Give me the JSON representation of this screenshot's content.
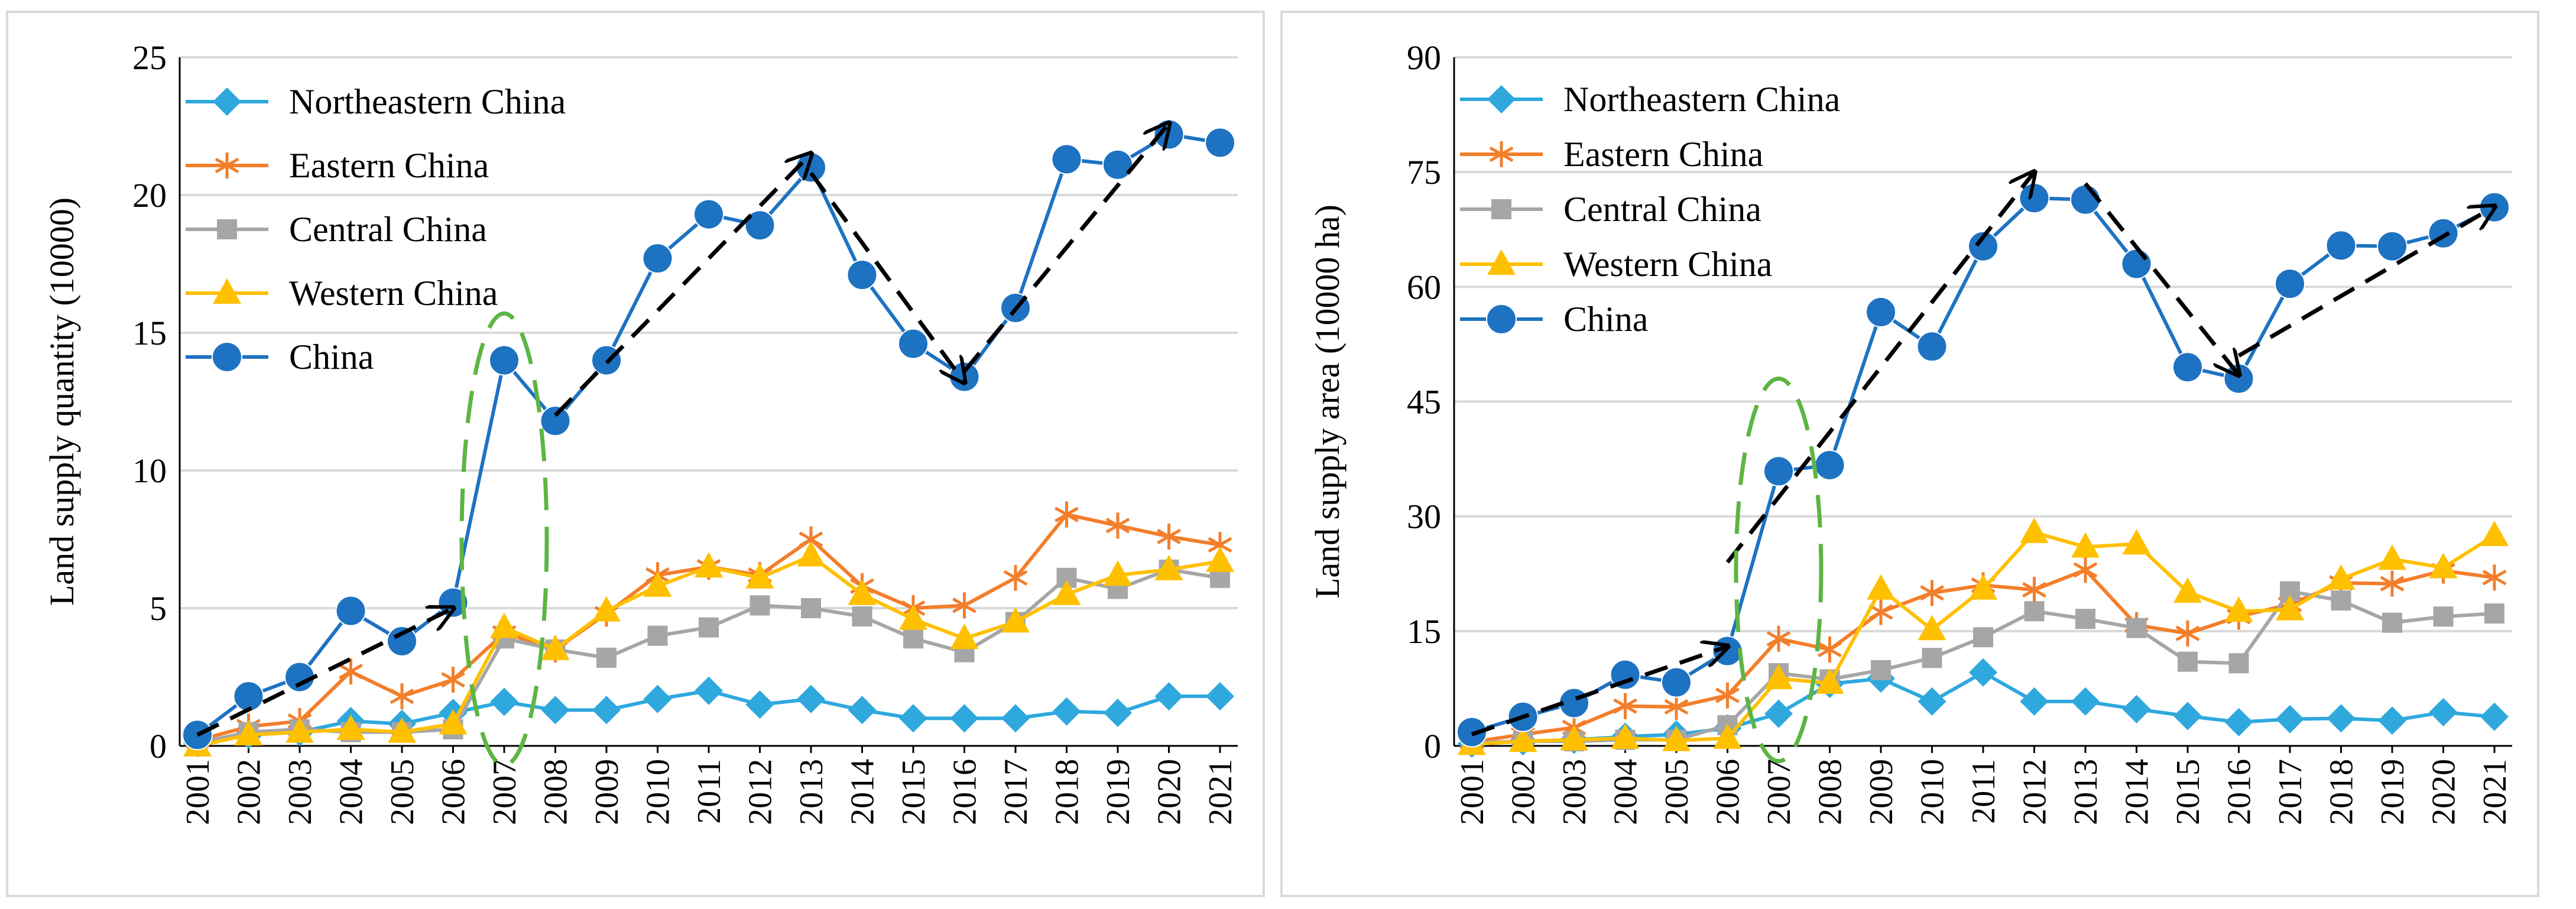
{
  "colors": {
    "Northeastern China": "#2fa8de",
    "Eastern China": "#f37e2b",
    "Central China": "#a6a6a6",
    "Western China": "#ffc000",
    "China": "#1e72c2",
    "trend_arrow": "#000000",
    "highlight_ellipse": "#5db543"
  },
  "chart_data": [
    {
      "type": "line",
      "ylabel": "Land supply quantity (10000)",
      "xlabel": "",
      "ylim": [
        0,
        25
      ],
      "yticks": [
        "0",
        "5",
        "10",
        "15",
        "20",
        "25"
      ],
      "categories": [
        "2001",
        "2002",
        "2003",
        "2004",
        "2005",
        "2006",
        "2007",
        "2008",
        "2009",
        "2010",
        "2011",
        "2012",
        "2013",
        "2014",
        "2015",
        "2016",
        "2017",
        "2018",
        "2019",
        "2020",
        "2021"
      ],
      "legend_position": "top-left",
      "series": [
        {
          "name": "Northeastern China",
          "marker": "diamond",
          "values": [
            0.1,
            0.4,
            0.5,
            0.9,
            0.8,
            1.2,
            1.6,
            1.3,
            1.3,
            1.7,
            2.0,
            1.5,
            1.7,
            1.3,
            1.0,
            1.0,
            1.0,
            1.25,
            1.2,
            1.8,
            1.8
          ]
        },
        {
          "name": "Eastern China",
          "marker": "asterisk",
          "values": [
            0.2,
            0.7,
            0.9,
            2.7,
            1.8,
            2.4,
            4.1,
            3.5,
            4.8,
            6.2,
            6.5,
            6.2,
            7.5,
            5.8,
            5.0,
            5.1,
            6.1,
            8.4,
            8.0,
            7.6,
            7.3
          ]
        },
        {
          "name": "Central China",
          "marker": "square",
          "values": [
            0.1,
            0.5,
            0.6,
            0.5,
            0.5,
            0.6,
            3.9,
            3.5,
            3.2,
            4.0,
            4.3,
            5.1,
            5.0,
            4.7,
            3.9,
            3.4,
            4.5,
            6.1,
            5.7,
            6.4,
            6.1
          ]
        },
        {
          "name": "Western China",
          "marker": "triangle",
          "values": [
            0.0,
            0.4,
            0.5,
            0.6,
            0.5,
            0.8,
            4.3,
            3.5,
            4.9,
            5.8,
            6.5,
            6.1,
            6.9,
            5.5,
            4.6,
            3.9,
            4.5,
            5.5,
            6.2,
            6.4,
            6.7
          ]
        },
        {
          "name": "China",
          "marker": "circle",
          "values": [
            0.4,
            1.8,
            2.5,
            4.9,
            3.8,
            5.2,
            14.0,
            11.8,
            14.0,
            17.7,
            19.3,
            18.9,
            21.0,
            17.1,
            14.6,
            13.4,
            15.9,
            21.3,
            21.1,
            22.2,
            21.9
          ]
        }
      ],
      "annotations": [
        {
          "type": "trend-arrow",
          "from": [
            "2001",
            0.4
          ],
          "to": [
            "2006",
            5.0
          ]
        },
        {
          "type": "trend-arrow",
          "from": [
            "2008",
            12.0
          ],
          "to": [
            "2013",
            21.5
          ]
        },
        {
          "type": "trend-arrow",
          "from": [
            "2013",
            20.8
          ],
          "to": [
            "2016",
            13.2
          ]
        },
        {
          "type": "trend-arrow",
          "from": [
            "2016",
            13.6
          ],
          "to": [
            "2020",
            22.6
          ]
        },
        {
          "type": "highlight-ellipse",
          "center": [
            "2007",
            7.5
          ],
          "half_height": 8.2
        }
      ]
    },
    {
      "type": "line",
      "ylabel": "Land supply area (10000 ha)",
      "xlabel": "",
      "ylim": [
        0,
        90
      ],
      "yticks": [
        "0",
        "15",
        "30",
        "45",
        "60",
        "75",
        "90"
      ],
      "categories": [
        "2001",
        "2002",
        "2003",
        "2004",
        "2005",
        "2006",
        "2007",
        "2008",
        "2009",
        "2010",
        "2011",
        "2012",
        "2013",
        "2014",
        "2015",
        "2016",
        "2017",
        "2018",
        "2019",
        "2020",
        "2021"
      ],
      "legend_position": "top-left",
      "series": [
        {
          "name": "Northeastern China",
          "marker": "diamond",
          "values": [
            0.3,
            0.6,
            0.8,
            1.2,
            1.5,
            2.3,
            4.2,
            8.1,
            8.8,
            5.8,
            9.6,
            5.8,
            5.8,
            4.8,
            3.9,
            3.1,
            3.5,
            3.6,
            3.3,
            4.4,
            3.8
          ]
        },
        {
          "name": "Eastern China",
          "marker": "asterisk",
          "values": [
            0.5,
            1.5,
            2.4,
            5.2,
            5.1,
            6.6,
            14.0,
            12.6,
            17.5,
            20.0,
            21.0,
            20.4,
            23.0,
            15.8,
            14.7,
            16.9,
            18.5,
            21.3,
            21.2,
            22.9,
            22.0
          ]
        },
        {
          "name": "Central China",
          "marker": "square",
          "values": [
            0.4,
            0.6,
            0.6,
            0.8,
            0.8,
            2.7,
            9.5,
            8.7,
            9.9,
            11.5,
            14.2,
            17.6,
            16.6,
            15.4,
            11.0,
            10.8,
            20.2,
            19.0,
            16.1,
            16.9,
            17.3
          ]
        },
        {
          "name": "Western China",
          "marker": "triangle",
          "values": [
            0.2,
            0.6,
            0.8,
            1.0,
            0.7,
            1.0,
            8.8,
            8.2,
            20.5,
            15.2,
            20.5,
            27.9,
            26.0,
            26.4,
            20.1,
            17.6,
            17.8,
            21.8,
            24.4,
            23.3,
            27.5
          ]
        },
        {
          "name": "China",
          "marker": "circle",
          "values": [
            1.8,
            3.8,
            5.6,
            9.3,
            8.3,
            12.4,
            35.9,
            36.7,
            56.7,
            52.2,
            65.3,
            71.6,
            71.4,
            63.0,
            49.5,
            48.0,
            60.4,
            65.4,
            65.3,
            67.0,
            70.4
          ]
        }
      ],
      "annotations": [
        {
          "type": "trend-arrow",
          "from": [
            "2001",
            1.5
          ],
          "to": [
            "2006",
            13.0
          ]
        },
        {
          "type": "trend-arrow",
          "from": [
            "2006",
            24.0
          ],
          "to": [
            "2012",
            75.0
          ]
        },
        {
          "type": "trend-arrow",
          "from": [
            "2013",
            73.5
          ],
          "to": [
            "2016",
            48.5
          ]
        },
        {
          "type": "trend-arrow",
          "from": [
            "2016",
            51.0
          ],
          "to": [
            "2021",
            70.5
          ]
        },
        {
          "type": "highlight-ellipse",
          "center": [
            "2007",
            23.0
          ],
          "half_height": 25.0
        }
      ]
    }
  ]
}
